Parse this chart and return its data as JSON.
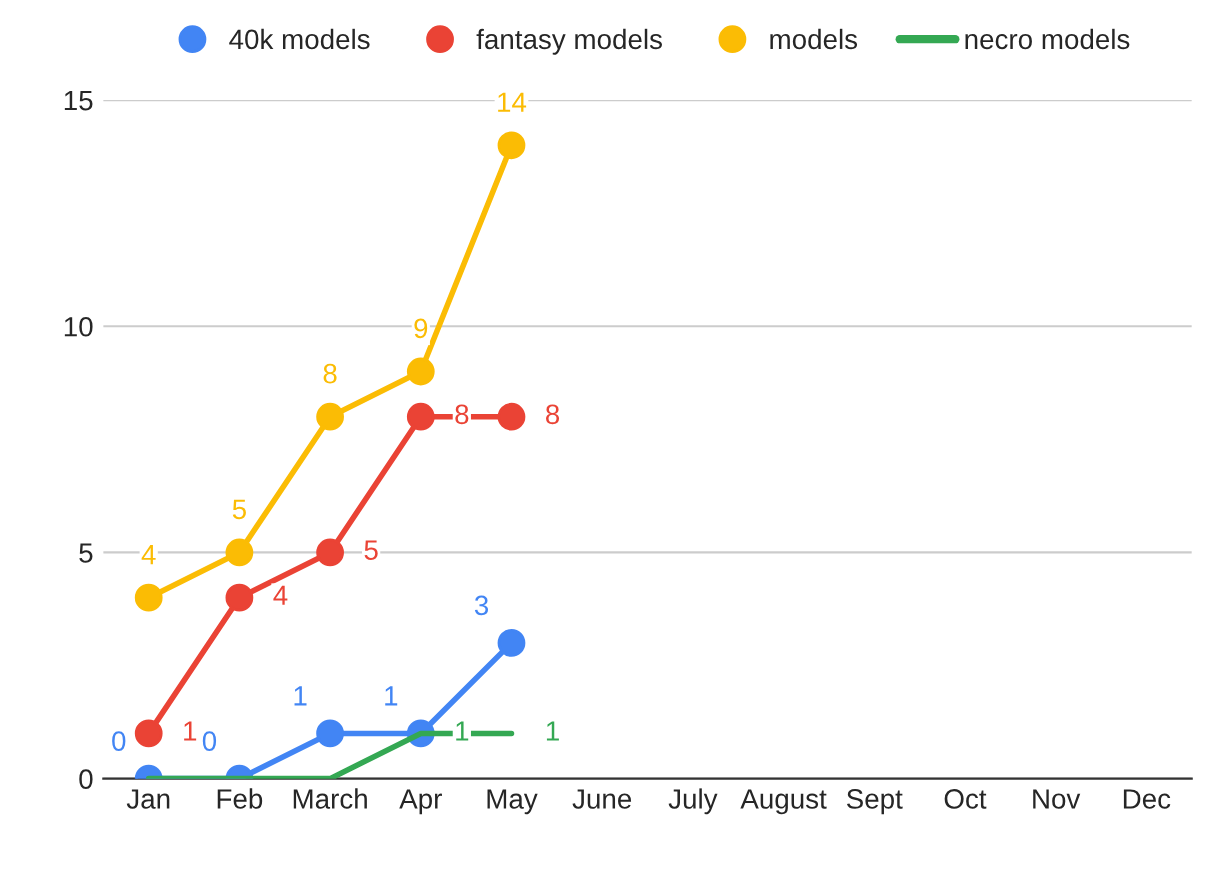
{
  "chart_data": {
    "type": "line",
    "categories": [
      "Jan",
      "Feb",
      "March",
      "Apr",
      "May",
      "June",
      "July",
      "August",
      "Sept",
      "Oct",
      "Nov",
      "Dec"
    ],
    "series": [
      {
        "name": "40k models",
        "color": "#4285f4",
        "marker": "circle",
        "values": [
          0,
          0,
          1,
          1,
          3,
          null,
          null,
          null,
          null,
          null,
          null,
          null
        ],
        "value_labels": [
          "0",
          "0",
          "1",
          "1",
          "3",
          null,
          null,
          null,
          null,
          null,
          null,
          null
        ]
      },
      {
        "name": "fantasy models",
        "color": "#ea4335",
        "marker": "circle",
        "values": [
          1,
          4,
          5,
          8,
          8,
          null,
          null,
          null,
          null,
          null,
          null,
          null
        ],
        "value_labels": [
          "1",
          "4",
          "5",
          "8",
          "8",
          null,
          null,
          null,
          null,
          null,
          null,
          null
        ]
      },
      {
        "name": "models",
        "color": "#fbbc04",
        "marker": "circle",
        "values": [
          4,
          5,
          8,
          9,
          14,
          null,
          null,
          null,
          null,
          null,
          null,
          null
        ],
        "value_labels": [
          "4",
          "5",
          "8",
          "9",
          "14",
          null,
          null,
          null,
          null,
          null,
          null,
          null
        ]
      },
      {
        "name": "necro models",
        "color": "#34a853",
        "marker": "none",
        "values": [
          0,
          0,
          0,
          1,
          1,
          null,
          null,
          null,
          null,
          null,
          null,
          null
        ],
        "value_labels": [
          null,
          null,
          null,
          "1",
          "1",
          null,
          null,
          null,
          null,
          null,
          null,
          null
        ]
      }
    ],
    "ylim": [
      0,
      15
    ],
    "yticks": [
      0,
      5,
      10,
      15
    ],
    "grid": "y",
    "legend": "top",
    "line_style": "solid"
  }
}
